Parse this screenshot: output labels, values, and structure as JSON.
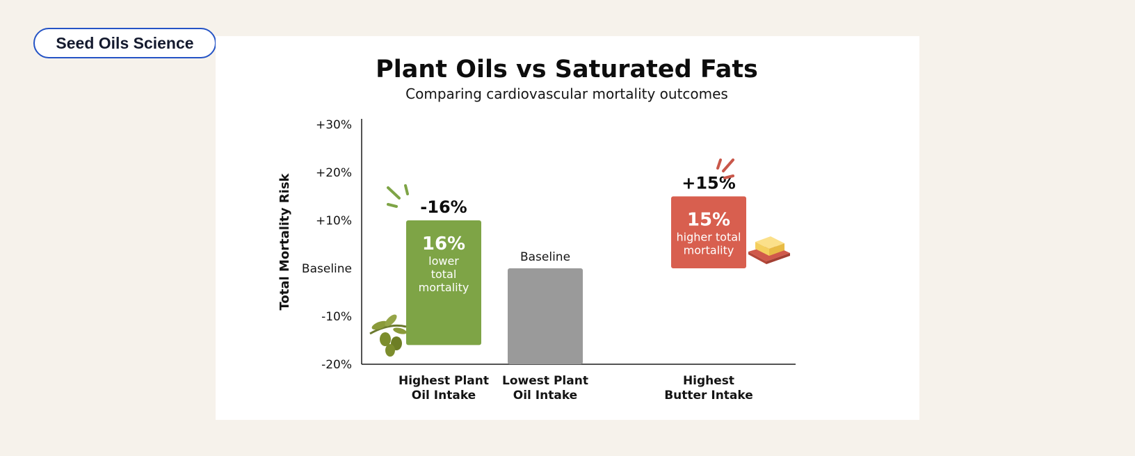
{
  "tag": {
    "label": "Seed Oils Science"
  },
  "colors": {
    "plant": "#7ea446",
    "baseline": "#9a9a9a",
    "butter": "#d85f4f",
    "tag_border": "#2453c5"
  },
  "icons": {
    "olive": "olive-branch-icon",
    "butter": "butter-dish-icon"
  },
  "chart_data": {
    "type": "bar",
    "title": "Plant Oils vs Saturated Fats",
    "subtitle": "Comparing cardiovascular mortality outcomes",
    "ylabel": "Total Mortality Risk",
    "ylim": [
      -20,
      30
    ],
    "yticks": [
      {
        "value": 30,
        "label": "+30%"
      },
      {
        "value": 20,
        "label": "+20%"
      },
      {
        "value": 10,
        "label": "+10%"
      },
      {
        "value": 0,
        "label": "Baseline"
      },
      {
        "value": -10,
        "label": "-10%"
      },
      {
        "value": -20,
        "label": "-20%"
      }
    ],
    "grid": false,
    "legend": "none",
    "bars": [
      {
        "category": [
          "Highest Plant",
          "Oil Intake"
        ],
        "value": -16,
        "range": [
          -16,
          10
        ],
        "value_label": "-16%",
        "inner_big": "16%",
        "inner_lines": [
          "lower",
          "total",
          "mortality"
        ],
        "color": "#7ea446"
      },
      {
        "category": [
          "Lowest Plant",
          "Oil Intake"
        ],
        "value": 0,
        "range": [
          -20,
          0
        ],
        "value_label": "Baseline",
        "inner_big": "",
        "inner_lines": [],
        "color": "#9a9a9a"
      },
      {
        "category": [
          "Highest",
          "Butter Intake"
        ],
        "value": 15,
        "range": [
          0,
          15
        ],
        "value_label": "+15%",
        "inner_big": "15%",
        "inner_lines": [
          "higher total",
          "mortality"
        ],
        "color": "#d85f4f"
      }
    ]
  }
}
